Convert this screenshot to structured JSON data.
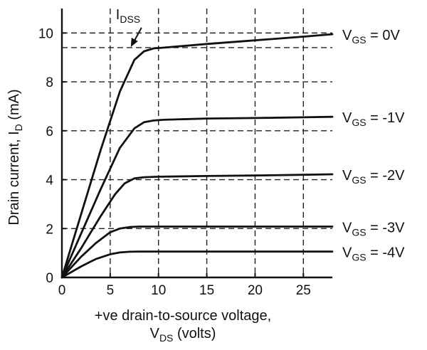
{
  "chart_data": {
    "type": "line",
    "title": "",
    "xlabel_line1": "+ve drain-to-source voltage,",
    "xlabel_line2_main": "V",
    "xlabel_line2_sub": "DS",
    "xlabel_line2_rest": " (volts)",
    "ylabel_main": "Drain current, I",
    "ylabel_sub": "D",
    "ylabel_rest": " (mA)",
    "xlim": [
      0,
      28
    ],
    "ylim": [
      0,
      11
    ],
    "xticks": [
      0,
      5,
      10,
      15,
      20,
      25
    ],
    "yticks": [
      0,
      2,
      4,
      6,
      8,
      10
    ],
    "grid": true,
    "extra_hgrid": [
      9.4
    ],
    "annotation": {
      "main": "I",
      "sub": "DSS",
      "target_x": 7.5,
      "target_y": 9.4
    },
    "series": [
      {
        "label_main": "V",
        "label_sub": "GS",
        "label_rest": " = 0V",
        "x": [
          0,
          2,
          4,
          6,
          7.5,
          8.5,
          9.5,
          10.5,
          15,
          20,
          25,
          28
        ],
        "y": [
          0,
          2.6,
          5.2,
          7.6,
          8.9,
          9.25,
          9.37,
          9.4,
          9.55,
          9.7,
          9.85,
          9.95
        ]
      },
      {
        "label_main": "V",
        "label_sub": "GS",
        "label_rest": " = -1V",
        "x": [
          0,
          2,
          4,
          6,
          7.5,
          8.5,
          9.5,
          10.5,
          15,
          20,
          25,
          28
        ],
        "y": [
          0,
          1.8,
          3.6,
          5.3,
          6.1,
          6.35,
          6.42,
          6.45,
          6.5,
          6.52,
          6.55,
          6.57
        ]
      },
      {
        "label_main": "V",
        "label_sub": "GS",
        "label_rest": " = -2V",
        "x": [
          0,
          2,
          4,
          5.5,
          6.5,
          7.5,
          8.5,
          10,
          15,
          20,
          25,
          28
        ],
        "y": [
          0,
          1.2,
          2.5,
          3.4,
          3.85,
          4.05,
          4.1,
          4.12,
          4.15,
          4.17,
          4.2,
          4.22
        ]
      },
      {
        "label_main": "V",
        "label_sub": "GS",
        "label_rest": " = -3V",
        "x": [
          0,
          2,
          3.5,
          5,
          6,
          7,
          8,
          10,
          15,
          20,
          25,
          28
        ],
        "y": [
          0,
          0.85,
          1.4,
          1.85,
          2.0,
          2.06,
          2.08,
          2.08,
          2.08,
          2.08,
          2.08,
          2.08
        ]
      },
      {
        "label_main": "V",
        "label_sub": "GS",
        "label_rest": " = -4V",
        "x": [
          0,
          2,
          3.5,
          5,
          6,
          7,
          8,
          10,
          15,
          20,
          25,
          28
        ],
        "y": [
          0,
          0.45,
          0.75,
          0.95,
          1.02,
          1.05,
          1.06,
          1.06,
          1.06,
          1.06,
          1.06,
          1.06
        ]
      }
    ]
  }
}
